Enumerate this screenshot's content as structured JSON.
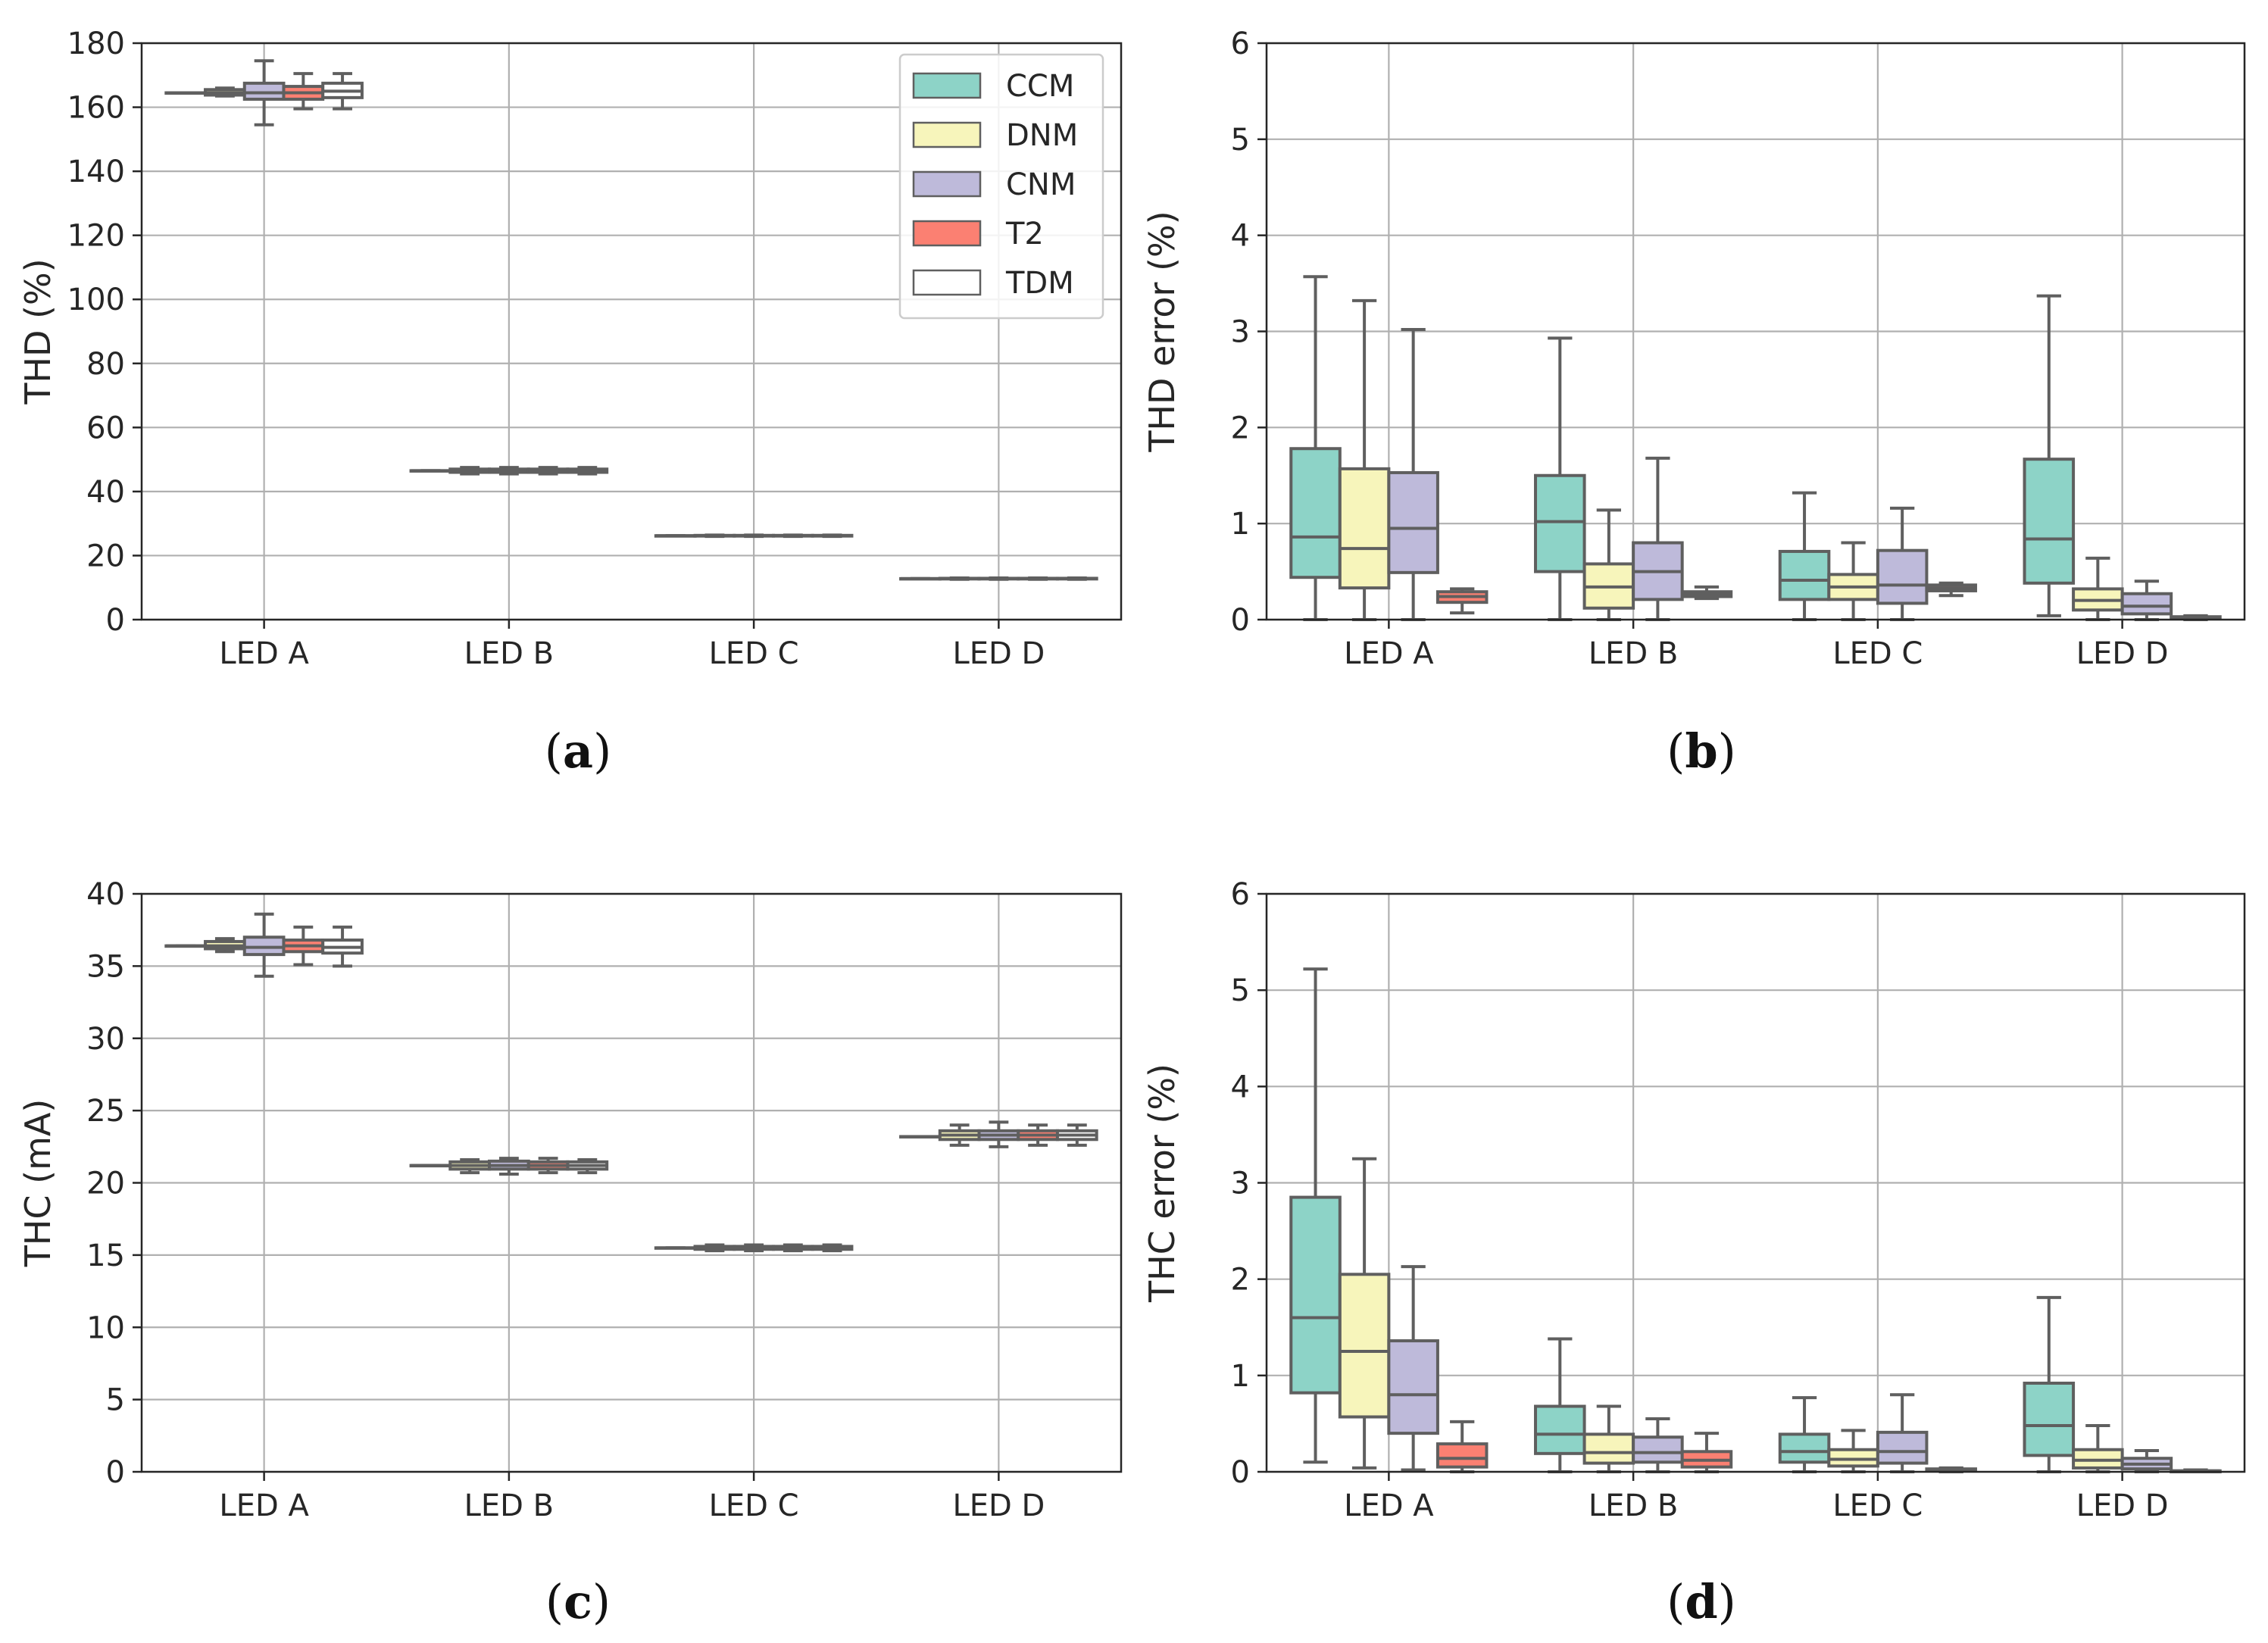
{
  "legend": [
    {
      "name": "CCM",
      "color": "#8dd3c7"
    },
    {
      "name": "DNM",
      "color": "#f7f5bb"
    },
    {
      "name": "CNM",
      "color": "#bebada"
    },
    {
      "name": "T2",
      "color": "#fb8072"
    },
    {
      "name": "TDM",
      "color": "#ffffff"
    }
  ],
  "panel_labels": [
    {
      "open": "(",
      "letter": "a",
      "close": ")"
    },
    {
      "open": "(",
      "letter": "b",
      "close": ")"
    },
    {
      "open": "(",
      "letter": "c",
      "close": ")"
    },
    {
      "open": "(",
      "letter": "d",
      "close": ")"
    }
  ],
  "chart_data": [
    {
      "type": "box",
      "title": "",
      "xlabel": "",
      "ylabel": "THD (%)",
      "categories": [
        "LED A",
        "LED B",
        "LED C",
        "LED D"
      ],
      "ylim": [
        0,
        180
      ],
      "yticks": [
        0,
        20,
        40,
        60,
        80,
        100,
        120,
        140,
        160,
        180
      ],
      "legend_position": "top-right",
      "grid": true,
      "series": [
        {
          "name": "CCM",
          "boxes": [
            {
              "min": 164.5,
              "q1": 164.5,
              "median": 164.5,
              "q3": 164.5,
              "max": 164.5
            },
            {
              "min": 46.5,
              "q1": 46.5,
              "median": 46.5,
              "q3": 46.5,
              "max": 46.5
            },
            {
              "min": 26.2,
              "q1": 26.2,
              "median": 26.2,
              "q3": 26.2,
              "max": 26.2
            },
            {
              "min": 12.8,
              "q1": 12.8,
              "median": 12.8,
              "q3": 12.8,
              "max": 12.8
            }
          ]
        },
        {
          "name": "DNM",
          "boxes": [
            {
              "min": 163.5,
              "q1": 163.8,
              "median": 164.5,
              "q3": 165.5,
              "max": 166
            },
            {
              "min": 45.5,
              "q1": 46,
              "median": 46.5,
              "q3": 47,
              "max": 47.5
            },
            {
              "min": 26,
              "q1": 26.1,
              "median": 26.2,
              "q3": 26.3,
              "max": 26.4
            },
            {
              "min": 12.6,
              "q1": 12.7,
              "median": 12.8,
              "q3": 12.9,
              "max": 13
            }
          ]
        },
        {
          "name": "CNM",
          "boxes": [
            {
              "min": 154.5,
              "q1": 162.5,
              "median": 164.5,
              "q3": 167.5,
              "max": 174.5
            },
            {
              "min": 45.5,
              "q1": 46,
              "median": 46.5,
              "q3": 47,
              "max": 47.5
            },
            {
              "min": 26,
              "q1": 26.1,
              "median": 26.2,
              "q3": 26.3,
              "max": 26.4
            },
            {
              "min": 12.6,
              "q1": 12.7,
              "median": 12.8,
              "q3": 12.9,
              "max": 13
            }
          ]
        },
        {
          "name": "T2",
          "boxes": [
            {
              "min": 159.5,
              "q1": 162.5,
              "median": 164.5,
              "q3": 166.5,
              "max": 170.5
            },
            {
              "min": 45.5,
              "q1": 46,
              "median": 46.5,
              "q3": 47,
              "max": 47.5
            },
            {
              "min": 26,
              "q1": 26.1,
              "median": 26.2,
              "q3": 26.3,
              "max": 26.4
            },
            {
              "min": 12.6,
              "q1": 12.7,
              "median": 12.8,
              "q3": 12.9,
              "max": 13
            }
          ]
        },
        {
          "name": "TDM",
          "boxes": [
            {
              "min": 159.5,
              "q1": 163,
              "median": 165,
              "q3": 167.5,
              "max": 170.5
            },
            {
              "min": 45.5,
              "q1": 46,
              "median": 46.5,
              "q3": 47,
              "max": 47.5
            },
            {
              "min": 26,
              "q1": 26.1,
              "median": 26.2,
              "q3": 26.3,
              "max": 26.4
            },
            {
              "min": 12.6,
              "q1": 12.7,
              "median": 12.8,
              "q3": 12.9,
              "max": 13
            }
          ]
        }
      ]
    },
    {
      "type": "box",
      "title": "",
      "xlabel": "",
      "ylabel": "THD error (%)",
      "categories": [
        "LED A",
        "LED B",
        "LED C",
        "LED D"
      ],
      "ylim": [
        0,
        6
      ],
      "yticks": [
        0,
        1,
        2,
        3,
        4,
        5,
        6
      ],
      "grid": true,
      "series": [
        {
          "name": "CCM",
          "boxes": [
            {
              "min": 0.0,
              "q1": 0.44,
              "median": 0.86,
              "q3": 1.78,
              "max": 3.57
            },
            {
              "min": 0.0,
              "q1": 0.5,
              "median": 1.02,
              "q3": 1.5,
              "max": 2.93
            },
            {
              "min": 0.0,
              "q1": 0.21,
              "median": 0.41,
              "q3": 0.71,
              "max": 1.32
            },
            {
              "min": 0.04,
              "q1": 0.38,
              "median": 0.84,
              "q3": 1.67,
              "max": 3.37
            }
          ]
        },
        {
          "name": "DNM",
          "boxes": [
            {
              "min": 0.0,
              "q1": 0.33,
              "median": 0.74,
              "q3": 1.57,
              "max": 3.32
            },
            {
              "min": 0.0,
              "q1": 0.12,
              "median": 0.34,
              "q3": 0.58,
              "max": 1.14
            },
            {
              "min": 0.0,
              "q1": 0.21,
              "median": 0.34,
              "q3": 0.47,
              "max": 0.8
            },
            {
              "min": 0.0,
              "q1": 0.1,
              "median": 0.2,
              "q3": 0.32,
              "max": 0.64
            }
          ]
        },
        {
          "name": "CNM",
          "boxes": [
            {
              "min": 0.0,
              "q1": 0.49,
              "median": 0.95,
              "q3": 1.53,
              "max": 3.02
            },
            {
              "min": 0.0,
              "q1": 0.21,
              "median": 0.5,
              "q3": 0.8,
              "max": 1.68
            },
            {
              "min": 0.0,
              "q1": 0.17,
              "median": 0.36,
              "q3": 0.72,
              "max": 1.16
            },
            {
              "min": 0.0,
              "q1": 0.06,
              "median": 0.14,
              "q3": 0.27,
              "max": 0.4
            }
          ]
        },
        {
          "name": "T2",
          "boxes": [
            {
              "min": 0.07,
              "q1": 0.18,
              "median": 0.24,
              "q3": 0.29,
              "max": 0.32
            },
            {
              "min": 0.22,
              "q1": 0.24,
              "median": 0.26,
              "q3": 0.29,
              "max": 0.34
            },
            {
              "min": 0.25,
              "q1": 0.3,
              "median": 0.33,
              "q3": 0.36,
              "max": 0.38
            },
            {
              "min": 0.0,
              "q1": 0.01,
              "median": 0.02,
              "q3": 0.03,
              "max": 0.04
            }
          ]
        }
      ]
    },
    {
      "type": "box",
      "title": "",
      "xlabel": "",
      "ylabel": "THC (mA)",
      "categories": [
        "LED A",
        "LED B",
        "LED C",
        "LED D"
      ],
      "ylim": [
        0,
        40
      ],
      "yticks": [
        0,
        5,
        10,
        15,
        20,
        25,
        30,
        35,
        40
      ],
      "grid": true,
      "series": [
        {
          "name": "CCM",
          "boxes": [
            {
              "min": 36.4,
              "q1": 36.4,
              "median": 36.4,
              "q3": 36.4,
              "max": 36.4
            },
            {
              "min": 21.2,
              "q1": 21.2,
              "median": 21.2,
              "q3": 21.2,
              "max": 21.2
            },
            {
              "min": 15.5,
              "q1": 15.5,
              "median": 15.5,
              "q3": 15.5,
              "max": 15.5
            },
            {
              "min": 23.2,
              "q1": 23.2,
              "median": 23.2,
              "q3": 23.2,
              "max": 23.2
            }
          ]
        },
        {
          "name": "DNM",
          "boxes": [
            {
              "min": 36.0,
              "q1": 36.2,
              "median": 36.4,
              "q3": 36.7,
              "max": 36.9
            },
            {
              "min": 20.7,
              "q1": 20.95,
              "median": 21.2,
              "q3": 21.45,
              "max": 21.6
            },
            {
              "min": 15.3,
              "q1": 15.4,
              "median": 15.5,
              "q3": 15.6,
              "max": 15.7
            },
            {
              "min": 22.6,
              "q1": 23.0,
              "median": 23.3,
              "q3": 23.6,
              "max": 24.0
            }
          ]
        },
        {
          "name": "CNM",
          "boxes": [
            {
              "min": 34.3,
              "q1": 35.8,
              "median": 36.3,
              "q3": 37.0,
              "max": 38.6
            },
            {
              "min": 20.6,
              "q1": 20.95,
              "median": 21.2,
              "q3": 21.5,
              "max": 21.7
            },
            {
              "min": 15.3,
              "q1": 15.4,
              "median": 15.5,
              "q3": 15.6,
              "max": 15.7
            },
            {
              "min": 22.5,
              "q1": 23.0,
              "median": 23.3,
              "q3": 23.6,
              "max": 24.2
            }
          ]
        },
        {
          "name": "T2",
          "boxes": [
            {
              "min": 35.1,
              "q1": 36.0,
              "median": 36.4,
              "q3": 36.8,
              "max": 37.7
            },
            {
              "min": 20.7,
              "q1": 20.95,
              "median": 21.2,
              "q3": 21.45,
              "max": 21.7
            },
            {
              "min": 15.3,
              "q1": 15.4,
              "median": 15.5,
              "q3": 15.6,
              "max": 15.7
            },
            {
              "min": 22.6,
              "q1": 23.0,
              "median": 23.3,
              "q3": 23.6,
              "max": 24.0
            }
          ]
        },
        {
          "name": "TDM",
          "boxes": [
            {
              "min": 35.0,
              "q1": 35.9,
              "median": 36.3,
              "q3": 36.8,
              "max": 37.7
            },
            {
              "min": 20.7,
              "q1": 20.95,
              "median": 21.2,
              "q3": 21.45,
              "max": 21.6
            },
            {
              "min": 15.3,
              "q1": 15.4,
              "median": 15.5,
              "q3": 15.6,
              "max": 15.7
            },
            {
              "min": 22.6,
              "q1": 23.0,
              "median": 23.3,
              "q3": 23.6,
              "max": 24.0
            }
          ]
        }
      ]
    },
    {
      "type": "box",
      "title": "",
      "xlabel": "",
      "ylabel": "THC error (%)",
      "categories": [
        "LED A",
        "LED B",
        "LED C",
        "LED D"
      ],
      "ylim": [
        0,
        6
      ],
      "yticks": [
        0,
        1,
        2,
        3,
        4,
        5,
        6
      ],
      "grid": true,
      "series": [
        {
          "name": "CCM",
          "boxes": [
            {
              "min": 0.1,
              "q1": 0.82,
              "median": 1.6,
              "q3": 2.85,
              "max": 5.22
            },
            {
              "min": 0.0,
              "q1": 0.19,
              "median": 0.39,
              "q3": 0.68,
              "max": 1.38
            },
            {
              "min": 0.0,
              "q1": 0.1,
              "median": 0.21,
              "q3": 0.39,
              "max": 0.77
            },
            {
              "min": 0.0,
              "q1": 0.17,
              "median": 0.48,
              "q3": 0.92,
              "max": 1.81
            }
          ]
        },
        {
          "name": "DNM",
          "boxes": [
            {
              "min": 0.04,
              "q1": 0.57,
              "median": 1.25,
              "q3": 2.05,
              "max": 3.25
            },
            {
              "min": 0.0,
              "q1": 0.09,
              "median": 0.2,
              "q3": 0.39,
              "max": 0.68
            },
            {
              "min": 0.0,
              "q1": 0.06,
              "median": 0.13,
              "q3": 0.23,
              "max": 0.43
            },
            {
              "min": 0.0,
              "q1": 0.04,
              "median": 0.12,
              "q3": 0.23,
              "max": 0.48
            }
          ]
        },
        {
          "name": "CNM",
          "boxes": [
            {
              "min": 0.02,
              "q1": 0.4,
              "median": 0.8,
              "q3": 1.36,
              "max": 2.13
            },
            {
              "min": 0.0,
              "q1": 0.1,
              "median": 0.2,
              "q3": 0.36,
              "max": 0.55
            },
            {
              "min": 0.0,
              "q1": 0.09,
              "median": 0.21,
              "q3": 0.41,
              "max": 0.8
            },
            {
              "min": 0.0,
              "q1": 0.03,
              "median": 0.08,
              "q3": 0.14,
              "max": 0.22
            }
          ]
        },
        {
          "name": "T2",
          "boxes": [
            {
              "min": 0.0,
              "q1": 0.05,
              "median": 0.14,
              "q3": 0.29,
              "max": 0.52
            },
            {
              "min": 0.0,
              "q1": 0.05,
              "median": 0.12,
              "q3": 0.21,
              "max": 0.4
            },
            {
              "min": 0.0,
              "q1": 0.01,
              "median": 0.02,
              "q3": 0.03,
              "max": 0.04
            },
            {
              "min": 0.0,
              "q1": 0.0,
              "median": 0.01,
              "q3": 0.01,
              "max": 0.02
            }
          ]
        }
      ]
    }
  ]
}
